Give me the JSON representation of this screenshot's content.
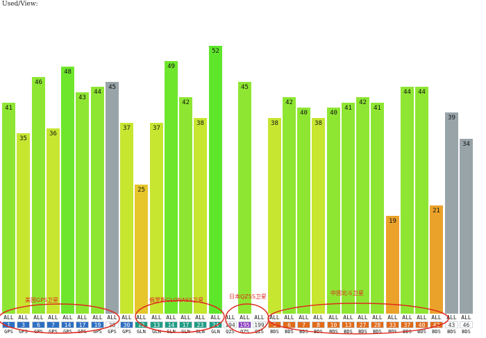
{
  "header": {
    "label": "Used/View:"
  },
  "annotations": [
    {
      "label": "美国GPS卫星"
    },
    {
      "label": "俄罗斯GLONASS卫星"
    },
    {
      "label": "日本QZSS卫星"
    },
    {
      "label": "中国北斗卫星"
    }
  ],
  "colors": {
    "green_bright": "#5ee62b",
    "green_light": "#8ee632",
    "yellow_green": "#c6e630",
    "yellow": "#e6c62a",
    "orange": "#eba22a",
    "gray": "#98a4a8",
    "prn_gps": "#2e6fc2",
    "prn_gln": "#1f9c84",
    "prn_qzss": "#8d3cc0",
    "prn_bds": "#e06b1a",
    "annotation": "#e02a20"
  },
  "chart_data": {
    "type": "bar",
    "used_label": "ALL",
    "satellites": [
      {
        "prn": "1",
        "system": "GPS",
        "snr": 41,
        "used": true,
        "prn_color": "#2e6fc2",
        "bar_color": "#8ee632"
      },
      {
        "prn": "3",
        "system": "GPS",
        "snr": 35,
        "used": true,
        "prn_color": "#2e6fc2",
        "bar_color": "#c6e630"
      },
      {
        "prn": "6",
        "system": "GPS",
        "snr": 46,
        "used": true,
        "prn_color": "#2e6fc2",
        "bar_color": "#8ee632"
      },
      {
        "prn": "7",
        "system": "GPS",
        "snr": 36,
        "used": true,
        "prn_color": "#2e6fc2",
        "bar_color": "#c6e630"
      },
      {
        "prn": "14",
        "system": "GPS",
        "snr": 48,
        "used": true,
        "prn_color": "#2e6fc2",
        "bar_color": "#6ee62c"
      },
      {
        "prn": "17",
        "system": "GPS",
        "snr": 43,
        "used": true,
        "prn_color": "#2e6fc2",
        "bar_color": "#8ee632"
      },
      {
        "prn": "19",
        "system": "GPS",
        "snr": 44,
        "used": true,
        "prn_color": "#2e6fc2",
        "bar_color": "#8ee632"
      },
      {
        "prn": "28",
        "system": "GPS",
        "snr": 45,
        "used": false,
        "prn_color": "#ffffff",
        "bar_color": "#98a4a8"
      },
      {
        "prn": "30",
        "system": "GPS",
        "snr": 37,
        "used": true,
        "prn_color": "#2e6fc2",
        "bar_color": "#c6e630"
      },
      {
        "prn": "12",
        "system": "GLN",
        "snr": 25,
        "used": true,
        "prn_color": "#1f9c84",
        "bar_color": "#e6c62a"
      },
      {
        "prn": "13",
        "system": "GLN",
        "snr": 37,
        "used": true,
        "prn_color": "#1f9c84",
        "bar_color": "#c6e630"
      },
      {
        "prn": "14",
        "system": "GLN",
        "snr": 49,
        "used": true,
        "prn_color": "#1f9c84",
        "bar_color": "#6ee62c"
      },
      {
        "prn": "17",
        "system": "GLN",
        "snr": 42,
        "used": true,
        "prn_color": "#1f9c84",
        "bar_color": "#8ee632"
      },
      {
        "prn": "23",
        "system": "GLN",
        "snr": 38,
        "used": true,
        "prn_color": "#1f9c84",
        "bar_color": "#c6e630"
      },
      {
        "prn": "24",
        "system": "GLN",
        "snr": 52,
        "used": true,
        "prn_color": "#1f9c84",
        "bar_color": "#5ee62b"
      },
      {
        "prn": "194",
        "system": "QZS",
        "snr": 0,
        "used": false,
        "prn_color": "#ffffff",
        "bar_color": "#98a4a8"
      },
      {
        "prn": "195",
        "system": "QZS",
        "snr": 45,
        "used": true,
        "prn_color": "#8d3cc0",
        "bar_color": "#8ee632"
      },
      {
        "prn": "199",
        "system": "QZS",
        "snr": 0,
        "used": false,
        "prn_color": "#ffffff",
        "bar_color": "#98a4a8"
      },
      {
        "prn": "5",
        "system": "BDS",
        "snr": 38,
        "used": true,
        "prn_color": "#e06b1a",
        "bar_color": "#c6e630"
      },
      {
        "prn": "6",
        "system": "BDS",
        "snr": 42,
        "used": true,
        "prn_color": "#e06b1a",
        "bar_color": "#8ee632"
      },
      {
        "prn": "7",
        "system": "BDS",
        "snr": 40,
        "used": true,
        "prn_color": "#e06b1a",
        "bar_color": "#8ee632"
      },
      {
        "prn": "8",
        "system": "BDS",
        "snr": 38,
        "used": true,
        "prn_color": "#e06b1a",
        "bar_color": "#c6e630"
      },
      {
        "prn": "10",
        "system": "BDS",
        "snr": 40,
        "used": true,
        "prn_color": "#e06b1a",
        "bar_color": "#8ee632"
      },
      {
        "prn": "13",
        "system": "BDS",
        "snr": 41,
        "used": true,
        "prn_color": "#e06b1a",
        "bar_color": "#8ee632"
      },
      {
        "prn": "27",
        "system": "BDS",
        "snr": 42,
        "used": true,
        "prn_color": "#e06b1a",
        "bar_color": "#8ee632"
      },
      {
        "prn": "28",
        "system": "BDS",
        "snr": 41,
        "used": true,
        "prn_color": "#e06b1a",
        "bar_color": "#8ee632"
      },
      {
        "prn": "33",
        "system": "BDS",
        "snr": 19,
        "used": true,
        "prn_color": "#e06b1a",
        "bar_color": "#eba22a"
      },
      {
        "prn": "37",
        "system": "BDS",
        "snr": 44,
        "used": true,
        "prn_color": "#e06b1a",
        "bar_color": "#8ee632"
      },
      {
        "prn": "40",
        "system": "BDS",
        "snr": 44,
        "used": true,
        "prn_color": "#e06b1a",
        "bar_color": "#8ee632"
      },
      {
        "prn": "42",
        "system": "BDS",
        "snr": 21,
        "used": true,
        "prn_color": "#e06b1a",
        "bar_color": "#eba22a"
      },
      {
        "prn": "43",
        "system": "BDS",
        "snr": 39,
        "used": false,
        "prn_color": "#ffffff",
        "bar_color": "#98a4a8"
      },
      {
        "prn": "46",
        "system": "BDS",
        "snr": 34,
        "used": false,
        "prn_color": "#ffffff",
        "bar_color": "#98a4a8"
      }
    ],
    "ylim": [
      0,
      52
    ]
  }
}
